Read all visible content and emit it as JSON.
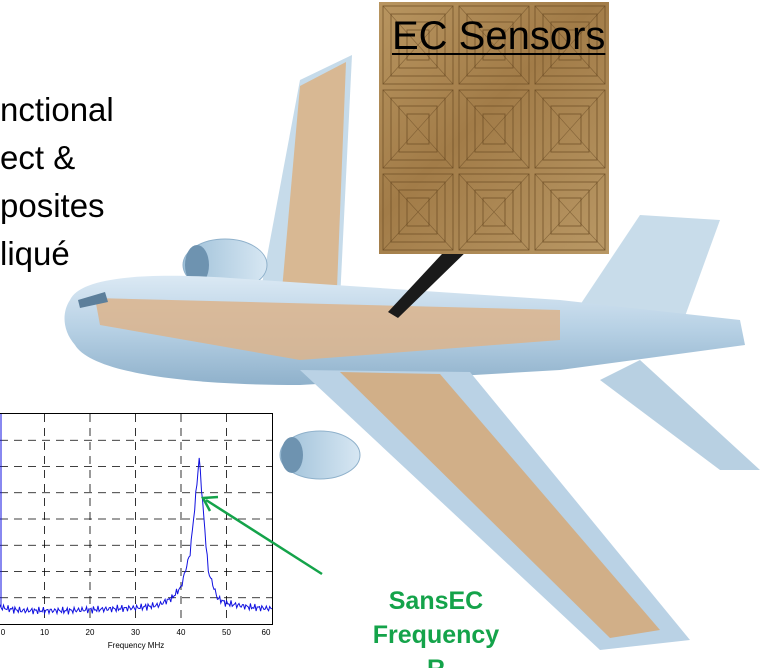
{
  "slide": {
    "title": "EC Sensors",
    "bullets": [
      "nctional",
      "ect &",
      "posites",
      "liqué"
    ]
  },
  "callout": {
    "line1": "SansEC",
    "line2": "Frequency",
    "line3": "R"
  },
  "colors": {
    "sensor_copper": "#c8a070",
    "plane_body": "#b8d4e8",
    "plot_line": "#1010e0",
    "arrow": "#14a34a",
    "callout_text": "#14a34a"
  },
  "chart_data": {
    "type": "line",
    "title": "",
    "xlabel": "Frequency MHz",
    "ylabel": "",
    "xlim": [
      0,
      60
    ],
    "x_ticks": [
      "0",
      "10",
      "20",
      "30",
      "40",
      "50",
      "60"
    ],
    "grid": true,
    "series": [
      {
        "x": [
          0,
          2,
          5,
          10,
          15,
          20,
          25,
          30,
          35,
          38,
          40,
          42,
          43,
          44,
          45,
          46,
          48,
          50,
          55,
          60
        ],
        "values": [
          0.05,
          0.04,
          0.03,
          0.03,
          0.03,
          0.035,
          0.04,
          0.045,
          0.06,
          0.1,
          0.16,
          0.35,
          0.6,
          0.88,
          0.55,
          0.25,
          0.1,
          0.07,
          0.05,
          0.04
        ]
      }
    ],
    "annotation": "SansEC Frequency R"
  }
}
